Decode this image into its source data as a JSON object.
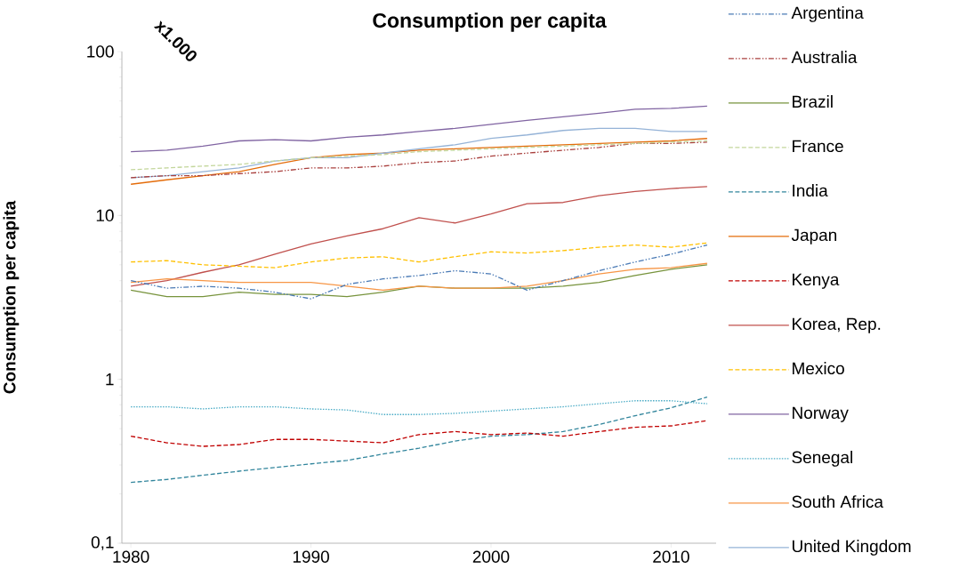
{
  "chart_data": {
    "type": "line",
    "title": "Consumption per capita",
    "ylabel": "Consumption per capita",
    "annotations": [
      "x1.000"
    ],
    "log": true,
    "grid": false,
    "legend": "right",
    "marker": "none",
    "xlim": [
      1979.5,
      2012.5
    ],
    "xticks": [
      1980,
      1990,
      2000,
      2010
    ],
    "ylim": [
      0.1,
      100
    ],
    "yticks": [
      {
        "value": 0.1,
        "label": "0,1"
      },
      1,
      10,
      100
    ],
    "x": [
      1980,
      1982,
      1984,
      1986,
      1988,
      1990,
      1992,
      1994,
      1996,
      1998,
      2000,
      2002,
      2004,
      2006,
      2008,
      2010,
      2012
    ],
    "series": [
      {
        "name": "Argentina",
        "color": "#4a7ab5",
        "line_style": "dashdotdot",
        "values": [
          4.0,
          3.6,
          3.7,
          3.6,
          3.4,
          3.1,
          3.8,
          4.1,
          4.3,
          4.6,
          4.4,
          3.5,
          4.0,
          4.6,
          5.2,
          5.8,
          6.6
        ]
      },
      {
        "name": "Australia",
        "color": "#a9403e",
        "line_style": "dashdotdot",
        "values": [
          17,
          17.5,
          17.5,
          18,
          18.5,
          19.5,
          19.5,
          20,
          21,
          21.5,
          23,
          24,
          25,
          26,
          27.5,
          27.5,
          28
        ]
      },
      {
        "name": "Brazil",
        "color": "#77933c",
        "line_style": "solid",
        "values": [
          3.5,
          3.2,
          3.2,
          3.4,
          3.3,
          3.3,
          3.2,
          3.4,
          3.7,
          3.6,
          3.6,
          3.6,
          3.7,
          3.9,
          4.3,
          4.7,
          5.0
        ]
      },
      {
        "name": "France",
        "color": "#c3d69b",
        "line_style": "dashed",
        "values": [
          19,
          19.5,
          20,
          20.5,
          21.5,
          22.5,
          23,
          23.5,
          24.5,
          25,
          25.5,
          26,
          26.5,
          27,
          27.5,
          28,
          28.5
        ]
      },
      {
        "name": "India",
        "color": "#31859c",
        "line_style": "dashed",
        "values": [
          0.235,
          0.245,
          0.26,
          0.275,
          0.29,
          0.305,
          0.32,
          0.35,
          0.38,
          0.42,
          0.45,
          0.46,
          0.48,
          0.53,
          0.6,
          0.67,
          0.78
        ]
      },
      {
        "name": "Japan",
        "color": "#e46c0a",
        "line_style": "solid",
        "values": [
          15.5,
          16.5,
          17.5,
          18.5,
          20.5,
          22.5,
          23.5,
          24,
          25,
          25.5,
          26,
          26.5,
          27,
          27.5,
          28,
          28.5,
          29.5
        ]
      },
      {
        "name": "Kenya",
        "color": "#c00000",
        "line_style": "dashed",
        "values": [
          0.45,
          0.41,
          0.39,
          0.4,
          0.43,
          0.43,
          0.42,
          0.41,
          0.46,
          0.48,
          0.46,
          0.47,
          0.45,
          0.48,
          0.51,
          0.52,
          0.56
        ]
      },
      {
        "name": "Korea, Rep.",
        "color": "#c0504d",
        "line_style": "solid",
        "values": [
          3.7,
          4.0,
          4.5,
          5.0,
          5.8,
          6.7,
          7.5,
          8.3,
          9.7,
          9.0,
          10.2,
          11.8,
          12.0,
          13.2,
          14.0,
          14.6,
          15.0
        ]
      },
      {
        "name": "Mexico",
        "color": "#ffc000",
        "line_style": "dashed",
        "values": [
          5.2,
          5.3,
          5.0,
          4.9,
          4.8,
          5.2,
          5.5,
          5.6,
          5.2,
          5.6,
          6.0,
          5.9,
          6.1,
          6.4,
          6.6,
          6.4,
          6.8
        ]
      },
      {
        "name": "Norway",
        "color": "#8064a2",
        "line_style": "solid",
        "values": [
          24.5,
          25,
          26.5,
          28.5,
          29,
          28.5,
          30,
          31,
          32.5,
          34,
          36,
          38,
          40,
          42,
          44.5,
          45,
          46.5
        ]
      },
      {
        "name": "Senegal",
        "color": "#4bacc6",
        "line_style": "dotted",
        "values": [
          0.68,
          0.68,
          0.66,
          0.68,
          0.68,
          0.66,
          0.65,
          0.61,
          0.61,
          0.62,
          0.64,
          0.66,
          0.68,
          0.71,
          0.74,
          0.74,
          0.71
        ]
      },
      {
        "name": "South Africa",
        "color": "#f79646",
        "line_style": "solid",
        "values": [
          3.9,
          4.1,
          4.0,
          3.9,
          3.9,
          3.9,
          3.7,
          3.5,
          3.7,
          3.6,
          3.6,
          3.7,
          4.0,
          4.4,
          4.7,
          4.8,
          5.1
        ]
      },
      {
        "name": "United Kingdom",
        "color": "#95b3d7",
        "line_style": "solid",
        "values": [
          17,
          17.5,
          18.5,
          19.5,
          21.5,
          22.5,
          22.5,
          24,
          25.5,
          27,
          29.5,
          31,
          33,
          34,
          34,
          32.5,
          32.5
        ]
      }
    ]
  }
}
